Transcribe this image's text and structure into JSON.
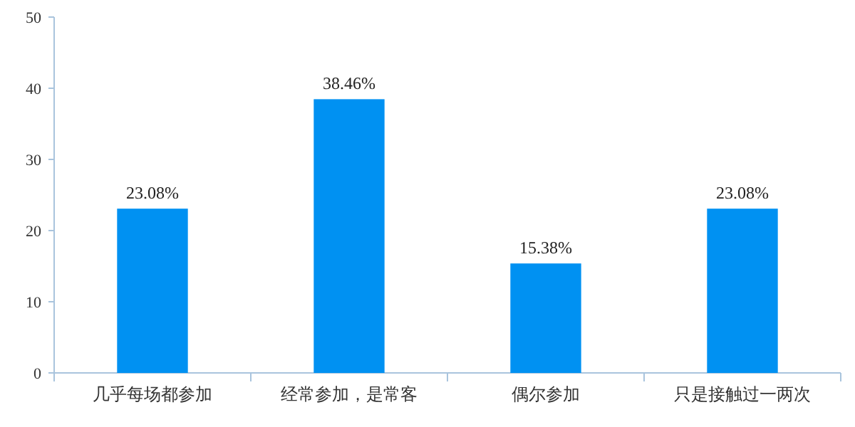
{
  "chart_data": {
    "type": "bar",
    "categories": [
      "几乎每场都参加",
      "经常参加，是常客",
      "偶尔参加",
      "只是接触过一两次"
    ],
    "values": [
      23.08,
      38.46,
      15.38,
      23.08
    ],
    "value_labels": [
      "23.08%",
      "38.46%",
      "15.38%",
      "23.08%"
    ],
    "color": "#0091f2",
    "ylim": [
      0,
      50
    ],
    "yticks": [
      0,
      10,
      20,
      30,
      40,
      50
    ],
    "grid": false
  }
}
